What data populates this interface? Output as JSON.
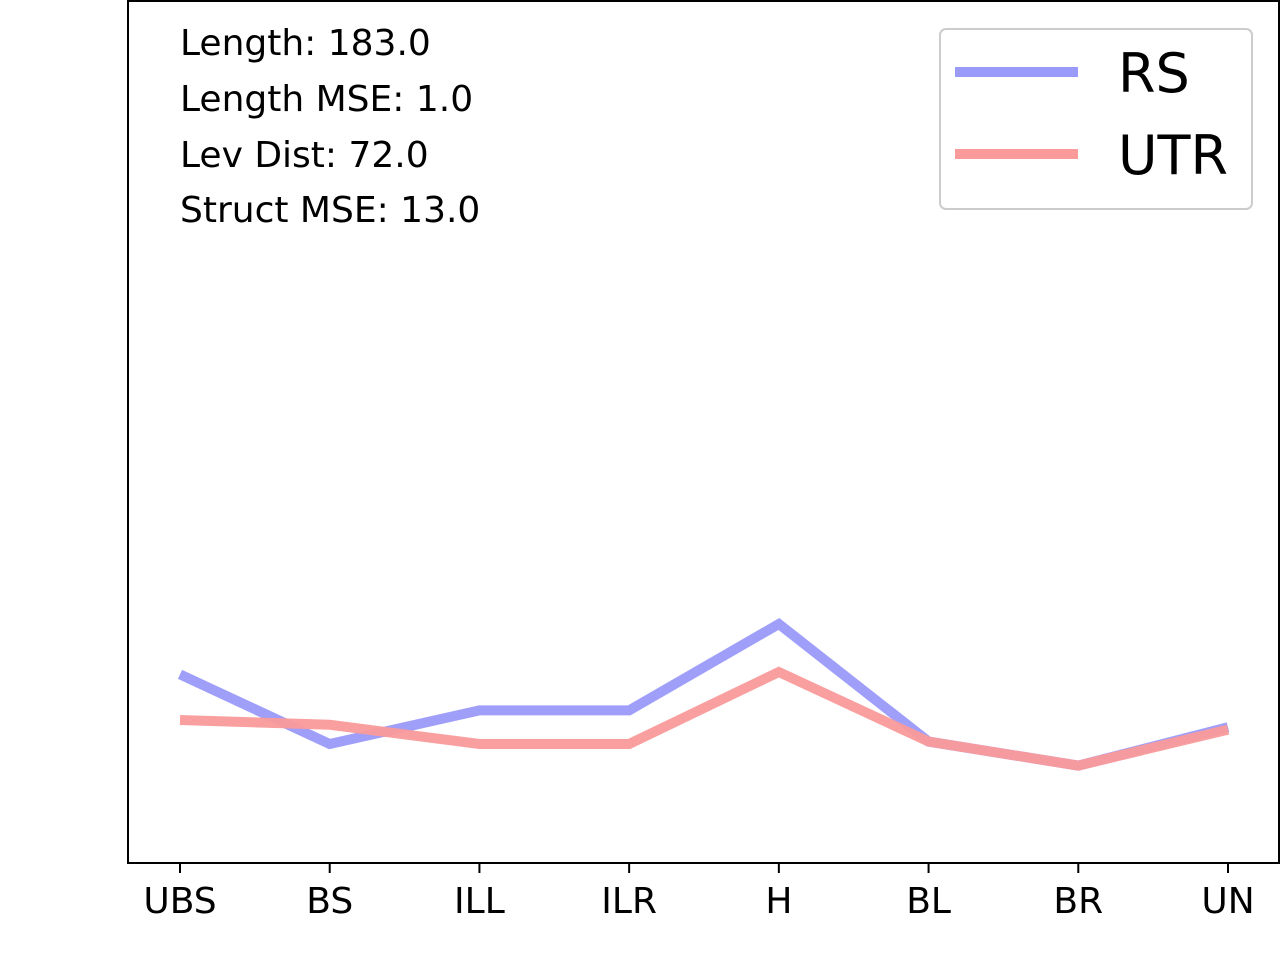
{
  "chart_data": {
    "type": "line",
    "categories": [
      "UBS",
      "BS",
      "ILL",
      "ILR",
      "H",
      "BL",
      "BR",
      "UN"
    ],
    "series": [
      {
        "name": "RS",
        "color": "#9a9afa",
        "values": [
          6.9,
          4.0,
          5.4,
          5.4,
          9.0,
          4.1,
          3.1,
          4.7
        ]
      },
      {
        "name": "UTR",
        "color": "#fa9a9a",
        "values": [
          5.0,
          4.8,
          4.0,
          4.0,
          7.0,
          4.1,
          3.1,
          4.6
        ]
      }
    ],
    "ylim": [
      -1,
      35
    ],
    "annotations": [
      "Length: 183.0",
      "Length MSE: 1.0",
      "Lev Dist: 72.0",
      "Struct MSE: 13.0"
    ],
    "legend": {
      "position": "top-right",
      "entries": [
        "RS",
        "UTR"
      ]
    },
    "grid": false,
    "yticks_visible": false
  }
}
